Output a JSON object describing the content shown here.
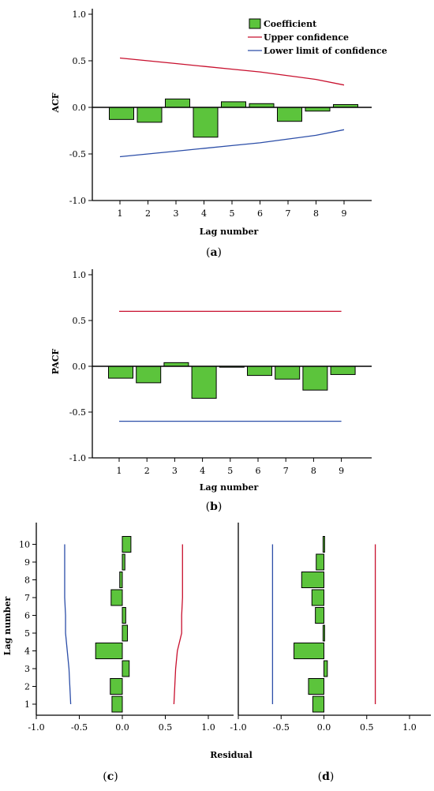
{
  "legend": {
    "coefficient": "Coefficient",
    "upper": "Upper confidence",
    "lower": "Lower limit of confidence"
  },
  "colors": {
    "bar": "#5cc43c",
    "upper": "#c8102e",
    "lower": "#2c4ea8"
  },
  "chart_data": [
    {
      "id": "a",
      "type": "bar",
      "caption": "a",
      "ylabel": "ACF",
      "xlabel": "Lag number",
      "ylim": [
        -1.0,
        1.0
      ],
      "yticks": [
        "1.0",
        "0.5",
        "0.0",
        "-0.5",
        "-1.0"
      ],
      "categories": [
        "1",
        "2",
        "3",
        "4",
        "5",
        "6",
        "7",
        "8",
        "9"
      ],
      "series": [
        {
          "name": "Coefficient",
          "values": [
            -0.13,
            -0.16,
            0.09,
            -0.32,
            0.06,
            0.04,
            -0.15,
            -0.04,
            0.03
          ]
        },
        {
          "name": "Upper confidence",
          "values": [
            0.53,
            0.5,
            0.47,
            0.44,
            0.41,
            0.38,
            0.34,
            0.3,
            0.24
          ]
        },
        {
          "name": "Lower limit of confidence",
          "values": [
            -0.53,
            -0.5,
            -0.47,
            -0.44,
            -0.41,
            -0.38,
            -0.34,
            -0.3,
            -0.24
          ]
        }
      ],
      "legend_position": "top-right"
    },
    {
      "id": "b",
      "type": "bar",
      "caption": "b",
      "ylabel": "PACF",
      "xlabel": "Lag number",
      "ylim": [
        -1.0,
        1.0
      ],
      "yticks": [
        "1.0",
        "0.5",
        "0.0",
        "-0.5",
        "-1.0"
      ],
      "categories": [
        "1",
        "2",
        "3",
        "4",
        "5",
        "6",
        "7",
        "8",
        "9"
      ],
      "series": [
        {
          "name": "Coefficient",
          "values": [
            -0.13,
            -0.18,
            0.04,
            -0.35,
            -0.01,
            -0.1,
            -0.14,
            -0.26,
            -0.09
          ]
        },
        {
          "name": "Upper confidence",
          "values": [
            0.6,
            0.6,
            0.6,
            0.6,
            0.6,
            0.6,
            0.6,
            0.6,
            0.6
          ]
        },
        {
          "name": "Lower limit of confidence",
          "values": [
            -0.6,
            -0.6,
            -0.6,
            -0.6,
            -0.6,
            -0.6,
            -0.6,
            -0.6,
            -0.6
          ]
        }
      ]
    },
    {
      "id": "c",
      "type": "bar",
      "orientation": "horizontal",
      "caption": "c",
      "ylabel": "Lag number",
      "xlabel": "Residual",
      "xlim": [
        -1.0,
        1.0
      ],
      "xticks": [
        "-1.0",
        "-0.5",
        "0.0",
        "0.5",
        "1.0"
      ],
      "categories": [
        "1",
        "2",
        "3",
        "4",
        "5",
        "6",
        "7",
        "8",
        "9",
        "10"
      ],
      "series": [
        {
          "name": "Coefficient",
          "values": [
            -0.12,
            -0.14,
            0.08,
            -0.31,
            0.06,
            0.04,
            -0.13,
            -0.03,
            0.03,
            0.1
          ]
        },
        {
          "name": "Upper confidence",
          "values": [
            0.6,
            0.61,
            0.62,
            0.64,
            0.69,
            0.69,
            0.7,
            0.7,
            0.7,
            0.7
          ]
        },
        {
          "name": "Lower limit of confidence",
          "values": [
            -0.6,
            -0.61,
            -0.62,
            -0.64,
            -0.66,
            -0.66,
            -0.67,
            -0.67,
            -0.67,
            -0.67
          ]
        }
      ]
    },
    {
      "id": "d",
      "type": "bar",
      "orientation": "horizontal",
      "caption": "d",
      "xlim": [
        -1.0,
        1.0
      ],
      "xticks": [
        "-1.0",
        "-0.5",
        "0.0",
        "0.5",
        "1.0"
      ],
      "categories": [
        "1",
        "2",
        "3",
        "4",
        "5",
        "6",
        "7",
        "8",
        "9",
        "10"
      ],
      "series": [
        {
          "name": "Coefficient",
          "values": [
            -0.13,
            -0.18,
            0.04,
            -0.35,
            -0.01,
            -0.1,
            -0.14,
            -0.26,
            -0.09,
            -0.01
          ]
        },
        {
          "name": "Upper confidence",
          "values": [
            0.6,
            0.6,
            0.6,
            0.6,
            0.6,
            0.6,
            0.6,
            0.6,
            0.6,
            0.6
          ]
        },
        {
          "name": "Lower limit of confidence",
          "values": [
            -0.6,
            -0.6,
            -0.6,
            -0.6,
            -0.6,
            -0.6,
            -0.6,
            -0.6,
            -0.6,
            -0.6
          ]
        }
      ]
    }
  ]
}
